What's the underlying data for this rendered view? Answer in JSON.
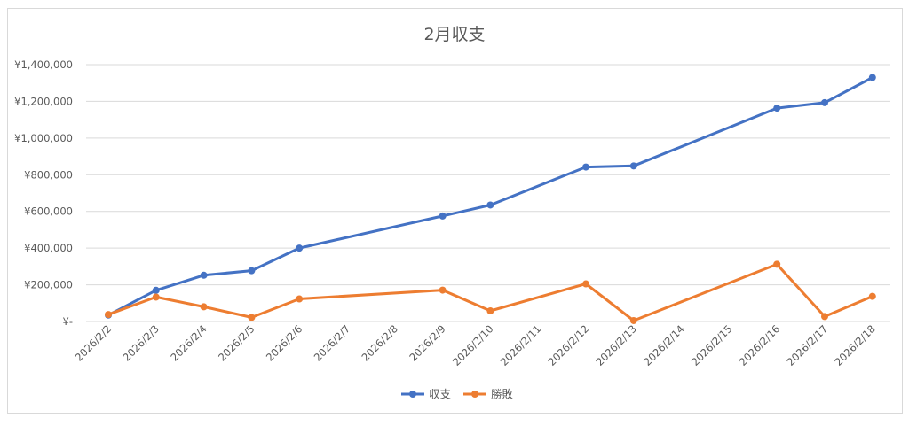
{
  "chart_data": {
    "type": "line",
    "title": "2月収支",
    "categories": [
      "2026/2/2",
      "2026/2/3",
      "2026/2/4",
      "2026/2/5",
      "2026/2/6",
      "2026/2/7",
      "2026/2/8",
      "2026/2/9",
      "2026/2/10",
      "2026/2/11",
      "2026/2/12",
      "2026/2/13",
      "2026/2/14",
      "2026/2/15",
      "2026/2/16",
      "2026/2/17",
      "2026/2/18"
    ],
    "yticks": [
      "¥-",
      "¥200,000",
      "¥400,000",
      "¥600,000",
      "¥800,000",
      "¥1,000,000",
      "¥1,200,000",
      "¥1,400,000"
    ],
    "ylim": [
      0,
      1400000
    ],
    "grid": true,
    "legend_position": "bottom",
    "series": [
      {
        "name": "収支",
        "color": "#4472c4",
        "points": [
          {
            "x": "2026/2/2",
            "y": 35000
          },
          {
            "x": "2026/2/3",
            "y": 170000
          },
          {
            "x": "2026/2/4",
            "y": 252000
          },
          {
            "x": "2026/2/5",
            "y": 277000
          },
          {
            "x": "2026/2/6",
            "y": 400000
          },
          {
            "x": "2026/2/9",
            "y": 575000
          },
          {
            "x": "2026/2/10",
            "y": 635000
          },
          {
            "x": "2026/2/12",
            "y": 842000
          },
          {
            "x": "2026/2/13",
            "y": 848000
          },
          {
            "x": "2026/2/16",
            "y": 1163000
          },
          {
            "x": "2026/2/17",
            "y": 1193000
          },
          {
            "x": "2026/2/18",
            "y": 1330000
          }
        ]
      },
      {
        "name": "勝敗",
        "color": "#ed7d31",
        "points": [
          {
            "x": "2026/2/2",
            "y": 38000
          },
          {
            "x": "2026/2/3",
            "y": 133000
          },
          {
            "x": "2026/2/4",
            "y": 80000
          },
          {
            "x": "2026/2/5",
            "y": 22000
          },
          {
            "x": "2026/2/6",
            "y": 123000
          },
          {
            "x": "2026/2/9",
            "y": 171000
          },
          {
            "x": "2026/2/10",
            "y": 58000
          },
          {
            "x": "2026/2/12",
            "y": 205000
          },
          {
            "x": "2026/2/13",
            "y": 5000
          },
          {
            "x": "2026/2/16",
            "y": 312000
          },
          {
            "x": "2026/2/17",
            "y": 27000
          },
          {
            "x": "2026/2/18",
            "y": 137000
          }
        ]
      }
    ]
  }
}
